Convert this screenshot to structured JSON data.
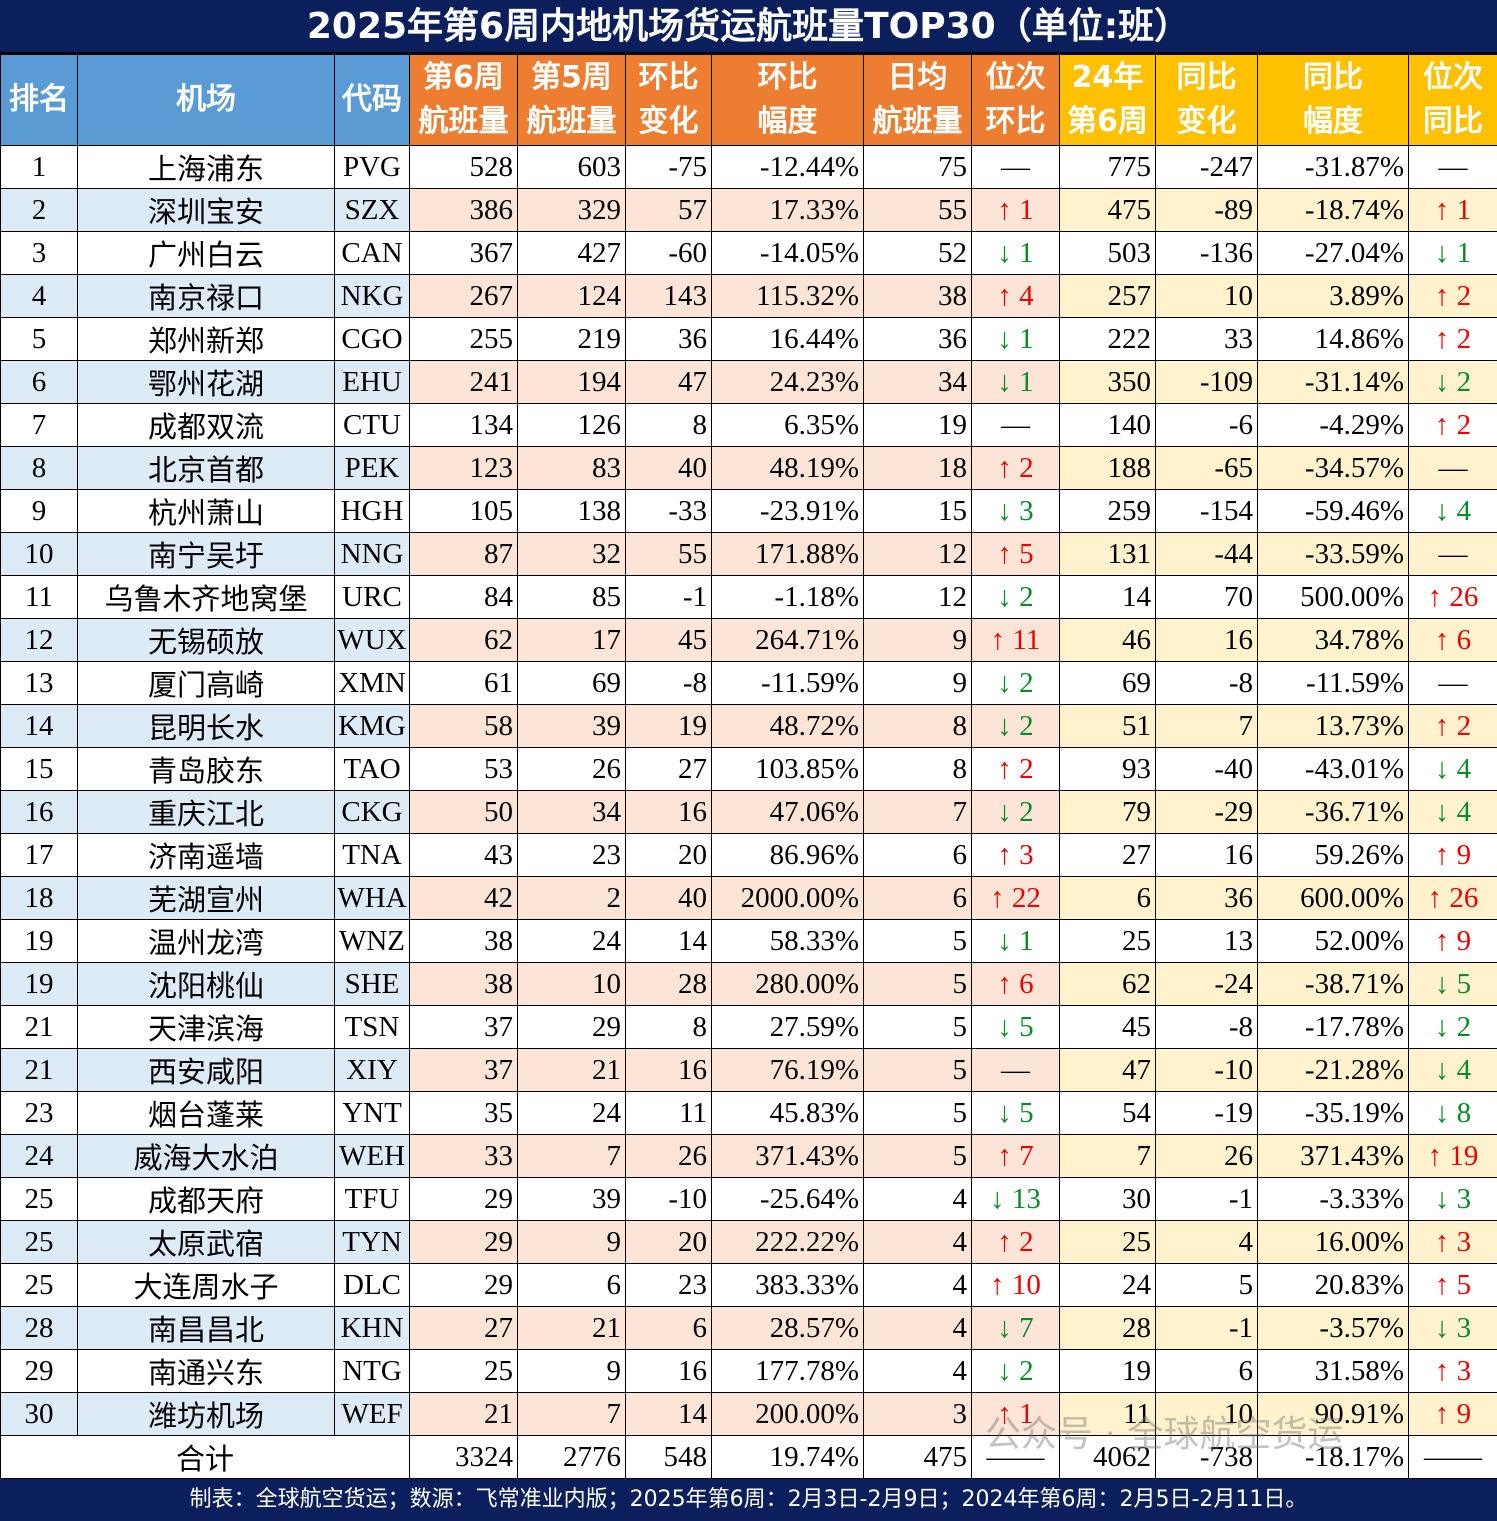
{
  "title": "2025年第6周内地机场货运航班量TOP30（单位:班）",
  "headers": [
    {
      "l1": "排名",
      "l2": ""
    },
    {
      "l1": "机场",
      "l2": ""
    },
    {
      "l1": "代码",
      "l2": ""
    },
    {
      "l1": "第6周",
      "l2": "航班量"
    },
    {
      "l1": "第5周",
      "l2": "航班量"
    },
    {
      "l1": "环比",
      "l2": "变化"
    },
    {
      "l1": "环比",
      "l2": "幅度"
    },
    {
      "l1": "日均",
      "l2": "航班量"
    },
    {
      "l1": "位次",
      "l2": "环比"
    },
    {
      "l1": "24年",
      "l2": "第6周"
    },
    {
      "l1": "同比",
      "l2": "变化"
    },
    {
      "l1": "同比",
      "l2": "幅度"
    },
    {
      "l1": "位次",
      "l2": "同比"
    }
  ],
  "colors": {
    "title_bg": "#0b1f5c",
    "blue": "#5b9bd5",
    "orange": "#ed7d31",
    "yellow": "#ffc000",
    "up": "#ee0000",
    "down": "#0a8a2a"
  },
  "rows": [
    [
      "1",
      "上海浦东",
      "PVG",
      "528",
      "603",
      "-75",
      "-12.44%",
      "75",
      "—",
      "775",
      "-247",
      "-31.87%",
      "—"
    ],
    [
      "2",
      "深圳宝安",
      "SZX",
      "386",
      "329",
      "57",
      "17.33%",
      "55",
      "↑ 1",
      "475",
      "-89",
      "-18.74%",
      "↑ 1"
    ],
    [
      "3",
      "广州白云",
      "CAN",
      "367",
      "427",
      "-60",
      "-14.05%",
      "52",
      "↓ 1",
      "503",
      "-136",
      "-27.04%",
      "↓ 1"
    ],
    [
      "4",
      "南京禄口",
      "NKG",
      "267",
      "124",
      "143",
      "115.32%",
      "38",
      "↑ 4",
      "257",
      "10",
      "3.89%",
      "↑ 2"
    ],
    [
      "5",
      "郑州新郑",
      "CGO",
      "255",
      "219",
      "36",
      "16.44%",
      "36",
      "↓ 1",
      "222",
      "33",
      "14.86%",
      "↑ 2"
    ],
    [
      "6",
      "鄂州花湖",
      "EHU",
      "241",
      "194",
      "47",
      "24.23%",
      "34",
      "↓ 1",
      "350",
      "-109",
      "-31.14%",
      "↓ 2"
    ],
    [
      "7",
      "成都双流",
      "CTU",
      "134",
      "126",
      "8",
      "6.35%",
      "19",
      "—",
      "140",
      "-6",
      "-4.29%",
      "↑ 2"
    ],
    [
      "8",
      "北京首都",
      "PEK",
      "123",
      "83",
      "40",
      "48.19%",
      "18",
      "↑ 2",
      "188",
      "-65",
      "-34.57%",
      "—"
    ],
    [
      "9",
      "杭州萧山",
      "HGH",
      "105",
      "138",
      "-33",
      "-23.91%",
      "15",
      "↓ 3",
      "259",
      "-154",
      "-59.46%",
      "↓ 4"
    ],
    [
      "10",
      "南宁吴圩",
      "NNG",
      "87",
      "32",
      "55",
      "171.88%",
      "12",
      "↑ 5",
      "131",
      "-44",
      "-33.59%",
      "—"
    ],
    [
      "11",
      "乌鲁木齐地窝堡",
      "URC",
      "84",
      "85",
      "-1",
      "-1.18%",
      "12",
      "↓ 2",
      "14",
      "70",
      "500.00%",
      "↑ 26"
    ],
    [
      "12",
      "无锡硕放",
      "WUX",
      "62",
      "17",
      "45",
      "264.71%",
      "9",
      "↑ 11",
      "46",
      "16",
      "34.78%",
      "↑ 6"
    ],
    [
      "13",
      "厦门高崎",
      "XMN",
      "61",
      "69",
      "-8",
      "-11.59%",
      "9",
      "↓ 2",
      "69",
      "-8",
      "-11.59%",
      "—"
    ],
    [
      "14",
      "昆明长水",
      "KMG",
      "58",
      "39",
      "19",
      "48.72%",
      "8",
      "↓ 2",
      "51",
      "7",
      "13.73%",
      "↑ 2"
    ],
    [
      "15",
      "青岛胶东",
      "TAO",
      "53",
      "26",
      "27",
      "103.85%",
      "8",
      "↑ 2",
      "93",
      "-40",
      "-43.01%",
      "↓ 4"
    ],
    [
      "16",
      "重庆江北",
      "CKG",
      "50",
      "34",
      "16",
      "47.06%",
      "7",
      "↓ 2",
      "79",
      "-29",
      "-36.71%",
      "↓ 4"
    ],
    [
      "17",
      "济南遥墙",
      "TNA",
      "43",
      "23",
      "20",
      "86.96%",
      "6",
      "↑ 3",
      "27",
      "16",
      "59.26%",
      "↑ 9"
    ],
    [
      "18",
      "芜湖宣州",
      "WHA",
      "42",
      "2",
      "40",
      "2000.00%",
      "6",
      "↑ 22",
      "6",
      "36",
      "600.00%",
      "↑ 26"
    ],
    [
      "19",
      "温州龙湾",
      "WNZ",
      "38",
      "24",
      "14",
      "58.33%",
      "5",
      "↓ 1",
      "25",
      "13",
      "52.00%",
      "↑ 9"
    ],
    [
      "19",
      "沈阳桃仙",
      "SHE",
      "38",
      "10",
      "28",
      "280.00%",
      "5",
      "↑ 6",
      "62",
      "-24",
      "-38.71%",
      "↓ 5"
    ],
    [
      "21",
      "天津滨海",
      "TSN",
      "37",
      "29",
      "8",
      "27.59%",
      "5",
      "↓ 5",
      "45",
      "-8",
      "-17.78%",
      "↓ 2"
    ],
    [
      "21",
      "西安咸阳",
      "XIY",
      "37",
      "21",
      "16",
      "76.19%",
      "5",
      "—",
      "47",
      "-10",
      "-21.28%",
      "↓ 4"
    ],
    [
      "23",
      "烟台蓬莱",
      "YNT",
      "35",
      "24",
      "11",
      "45.83%",
      "5",
      "↓ 5",
      "54",
      "-19",
      "-35.19%",
      "↓ 8"
    ],
    [
      "24",
      "威海大水泊",
      "WEH",
      "33",
      "7",
      "26",
      "371.43%",
      "5",
      "↑ 7",
      "7",
      "26",
      "371.43%",
      "↑ 19"
    ],
    [
      "25",
      "成都天府",
      "TFU",
      "29",
      "39",
      "-10",
      "-25.64%",
      "4",
      "↓ 13",
      "30",
      "-1",
      "-3.33%",
      "↓ 3"
    ],
    [
      "25",
      "太原武宿",
      "TYN",
      "29",
      "9",
      "20",
      "222.22%",
      "4",
      "↑ 2",
      "25",
      "4",
      "16.00%",
      "↑ 3"
    ],
    [
      "25",
      "大连周水子",
      "DLC",
      "29",
      "6",
      "23",
      "383.33%",
      "4",
      "↑ 10",
      "24",
      "5",
      "20.83%",
      "↑ 5"
    ],
    [
      "28",
      "南昌昌北",
      "KHN",
      "27",
      "21",
      "6",
      "28.57%",
      "4",
      "↓ 7",
      "28",
      "-1",
      "-3.57%",
      "↓ 3"
    ],
    [
      "29",
      "南通兴东",
      "NTG",
      "25",
      "9",
      "16",
      "177.78%",
      "4",
      "↓ 2",
      "19",
      "6",
      "31.58%",
      "↑ 3"
    ],
    [
      "30",
      "潍坊机场",
      "WEF",
      "21",
      "7",
      "14",
      "200.00%",
      "3",
      "↑ 1",
      "11",
      "10",
      "90.91%",
      "↑ 9"
    ]
  ],
  "total": {
    "label": "合计",
    "w6": "3324",
    "w5": "2776",
    "chg": "548",
    "pct": "19.74%",
    "daily": "475",
    "rank_mom": "——",
    "y24": "4062",
    "yoy_chg": "-738",
    "yoy_pct": "-18.17%",
    "rank_yoy": "——"
  },
  "watermark": "公众号 · 全球航空货运",
  "footer": "制表：全球航空货运；数源：飞常准业内版；2025年第6周：2月3日-2月9日；2024年第6周：2月5日-2月11日。"
}
